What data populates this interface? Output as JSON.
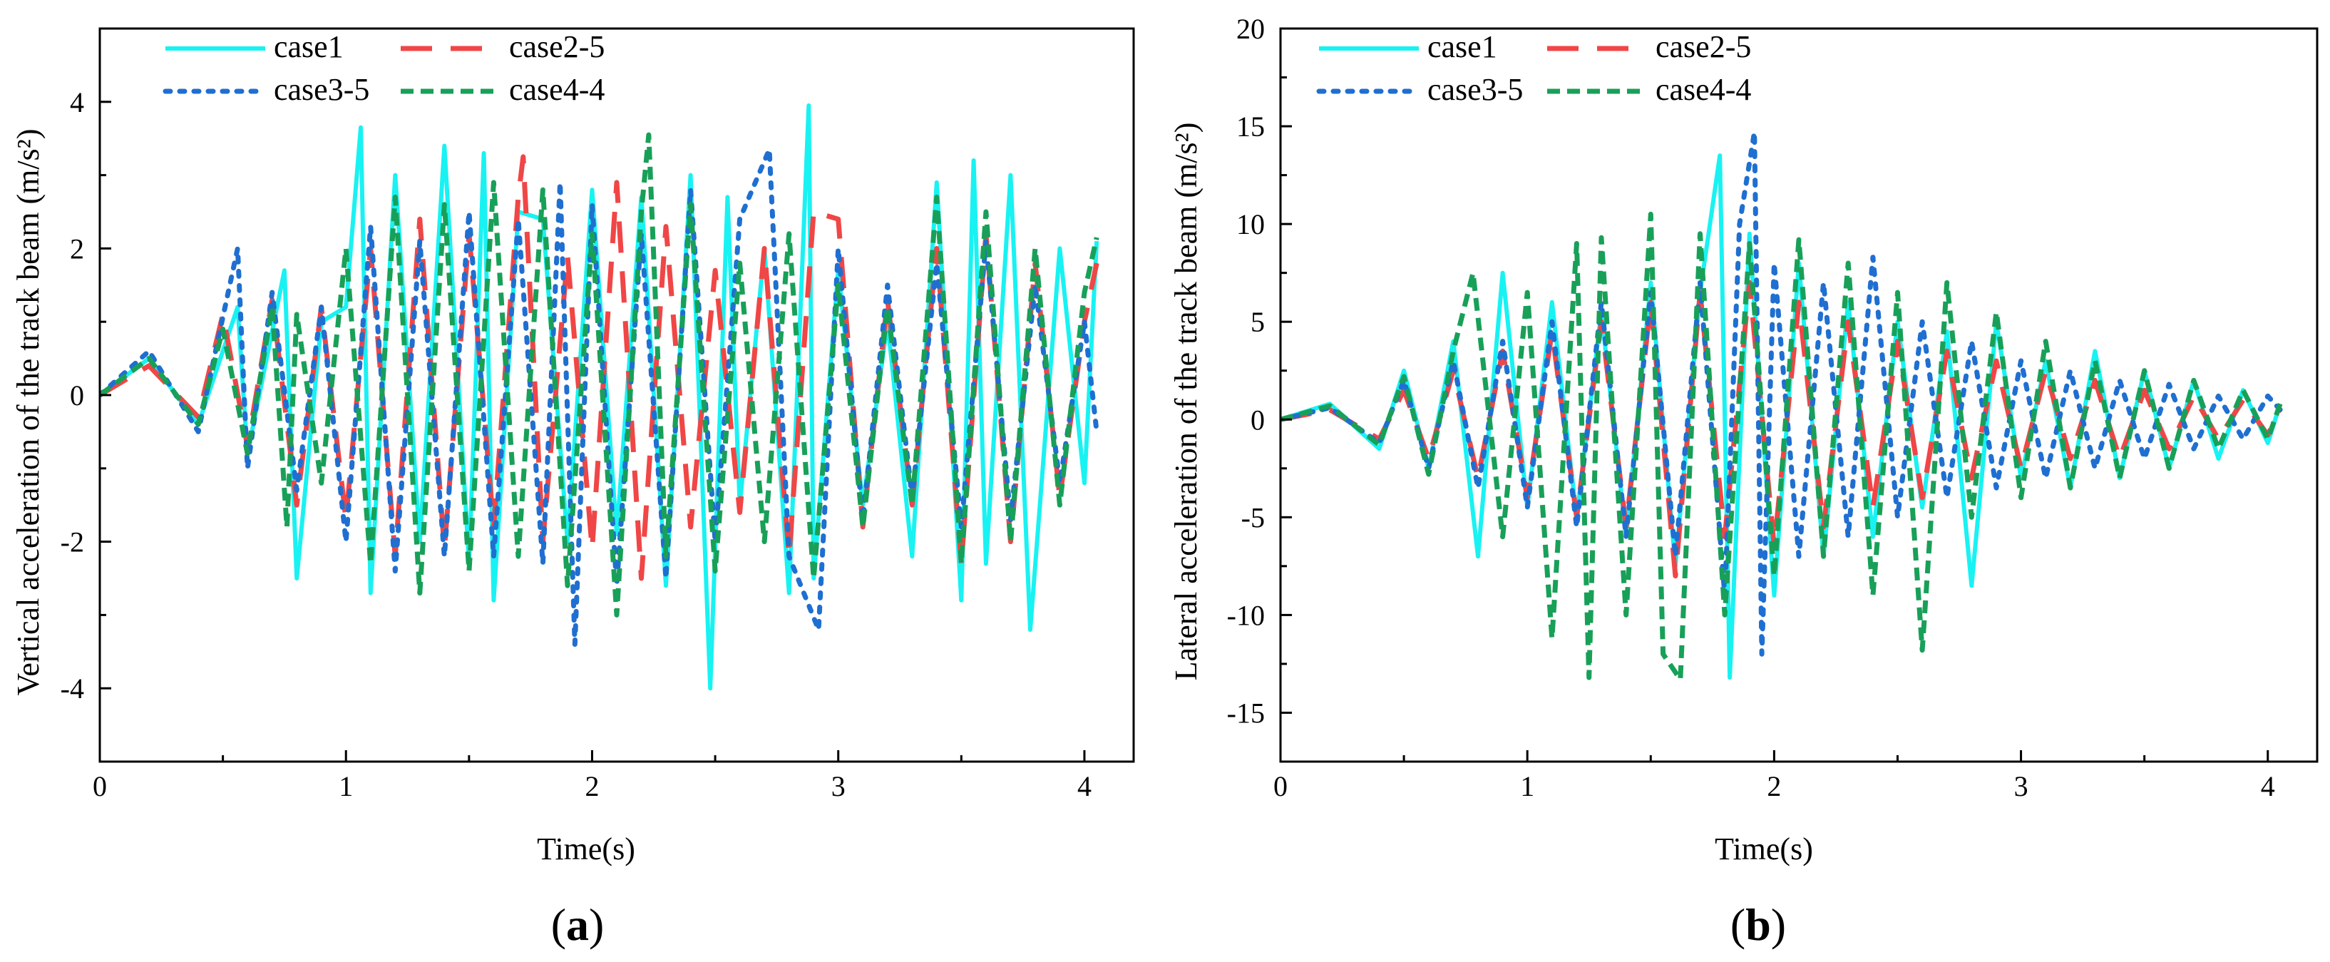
{
  "figure": {
    "panels": [
      {
        "label_open": "(",
        "label_letter": "a",
        "label_close": ")"
      },
      {
        "label_open": "(",
        "label_letter": "b",
        "label_close": ")"
      }
    ]
  },
  "chart_data": [
    {
      "type": "line",
      "title": "",
      "xlabel": "Time(s)",
      "ylabel": "Vertical acceleration of the track beam (m/s²)",
      "xlim": [
        0,
        4.2
      ],
      "ylim": [
        -5,
        5
      ],
      "xticks": [
        0,
        1,
        2,
        3,
        4
      ],
      "yticks": [
        -4,
        -2,
        0,
        2,
        4
      ],
      "legend_location": "top-left",
      "series": [
        {
          "name": "case1",
          "color": "#19F2F2",
          "dash": "solid",
          "x": [
            0,
            0.2,
            0.4,
            0.56,
            0.6,
            0.75,
            0.8,
            0.9,
            1.0,
            1.06,
            1.1,
            1.2,
            1.3,
            1.4,
            1.5,
            1.56,
            1.6,
            1.7,
            1.8,
            1.9,
            2.0,
            2.1,
            2.2,
            2.3,
            2.4,
            2.48,
            2.55,
            2.6,
            2.7,
            2.8,
            2.88,
            2.9,
            3.0,
            3.1,
            3.2,
            3.3,
            3.4,
            3.5,
            3.55,
            3.6,
            3.7,
            3.78,
            3.9,
            4.0,
            4.05
          ],
          "y": [
            0,
            0.5,
            -0.4,
            1.2,
            -0.8,
            1.7,
            -2.5,
            1.0,
            1.2,
            3.65,
            -2.7,
            3.0,
            -2.0,
            3.4,
            -2.3,
            3.3,
            -2.8,
            2.5,
            2.4,
            -2.0,
            2.8,
            -1.9,
            2.7,
            -2.6,
            3.0,
            -4.0,
            2.7,
            -1.5,
            2.0,
            -2.7,
            3.95,
            -2.5,
            1.7,
            -1.5,
            1.0,
            -2.2,
            2.9,
            -2.8,
            3.2,
            -2.3,
            3.0,
            -3.2,
            2.0,
            -1.2,
            2.1
          ]
        },
        {
          "name": "case2-5",
          "color": "#F04646",
          "dash": "long-dash",
          "x": [
            0,
            0.2,
            0.4,
            0.5,
            0.6,
            0.7,
            0.8,
            0.9,
            1.0,
            1.1,
            1.2,
            1.3,
            1.4,
            1.5,
            1.6,
            1.7,
            1.72,
            1.8,
            1.9,
            2.0,
            2.1,
            2.2,
            2.3,
            2.4,
            2.5,
            2.6,
            2.7,
            2.8,
            2.9,
            3.0,
            3.1,
            3.2,
            3.3,
            3.4,
            3.5,
            3.6,
            3.7,
            3.8,
            3.9,
            4.0,
            4.05
          ],
          "y": [
            0,
            0.4,
            -0.3,
            1.1,
            -0.7,
            1.3,
            -1.5,
            1.2,
            -1.7,
            2.0,
            -2.2,
            2.4,
            -2.1,
            2.2,
            -1.8,
            2.7,
            3.25,
            -2.0,
            1.9,
            -2.1,
            2.9,
            -2.5,
            2.3,
            -1.8,
            1.7,
            -1.6,
            2.0,
            -2.2,
            2.5,
            2.4,
            -1.8,
            1.3,
            -1.5,
            2.0,
            -2.3,
            2.2,
            -2.0,
            1.8,
            -1.4,
            1.0,
            1.8
          ]
        },
        {
          "name": "case3-5",
          "color": "#1F6FD1",
          "dash": "dot",
          "x": [
            0,
            0.2,
            0.4,
            0.56,
            0.6,
            0.7,
            0.8,
            0.9,
            1.0,
            1.1,
            1.2,
            1.3,
            1.4,
            1.5,
            1.6,
            1.7,
            1.8,
            1.87,
            1.93,
            2.0,
            2.1,
            2.2,
            2.3,
            2.4,
            2.5,
            2.6,
            2.72,
            2.8,
            2.92,
            3.0,
            3.1,
            3.2,
            3.3,
            3.4,
            3.5,
            3.6,
            3.7,
            3.8,
            3.9,
            4.0,
            4.05
          ],
          "y": [
            0,
            0.6,
            -0.5,
            2.0,
            -1.0,
            1.4,
            -1.3,
            1.2,
            -2.0,
            2.3,
            -2.4,
            2.1,
            -2.2,
            2.5,
            -2.2,
            2.4,
            -2.3,
            2.9,
            -3.4,
            2.6,
            -2.6,
            2.2,
            -2.5,
            2.8,
            -2.0,
            2.4,
            3.35,
            -2.2,
            -3.2,
            2.0,
            -1.7,
            1.5,
            -1.4,
            1.8,
            -1.8,
            2.1,
            -1.7,
            1.5,
            -1.2,
            1.0,
            -0.5
          ]
        },
        {
          "name": "case4-4",
          "color": "#18A058",
          "dash": "dash",
          "x": [
            0,
            0.2,
            0.4,
            0.5,
            0.6,
            0.7,
            0.76,
            0.8,
            0.9,
            1.0,
            1.1,
            1.2,
            1.3,
            1.4,
            1.5,
            1.6,
            1.7,
            1.8,
            1.9,
            2.0,
            2.1,
            2.2,
            2.23,
            2.3,
            2.4,
            2.5,
            2.6,
            2.7,
            2.8,
            2.9,
            3.0,
            3.1,
            3.2,
            3.3,
            3.4,
            3.5,
            3.6,
            3.7,
            3.8,
            3.9,
            4.0,
            4.05
          ],
          "y": [
            0,
            0.5,
            -0.4,
            0.9,
            -0.8,
            1.2,
            -1.8,
            1.1,
            -1.2,
            2.0,
            -2.3,
            2.7,
            -2.7,
            2.6,
            -2.4,
            2.9,
            -2.2,
            2.8,
            -2.6,
            2.2,
            -3.0,
            2.5,
            3.55,
            -2.2,
            2.6,
            -2.4,
            1.8,
            -2.0,
            2.2,
            -2.5,
            1.5,
            -1.8,
            1.2,
            -1.5,
            2.7,
            -2.3,
            2.5,
            -2.0,
            2.0,
            -1.5,
            1.4,
            2.15
          ]
        }
      ]
    },
    {
      "type": "line",
      "title": "",
      "xlabel": "Time(s)",
      "ylabel": "Lateral acceleration of the track beam (m/s²)",
      "xlim": [
        0,
        4.2
      ],
      "ylim": [
        -17.5,
        20
      ],
      "xticks": [
        0,
        1,
        2,
        3,
        4
      ],
      "yticks": [
        -15,
        -10,
        -5,
        0,
        5,
        10,
        15,
        20
      ],
      "legend_location": "top-left",
      "series": [
        {
          "name": "case1",
          "color": "#19F2F2",
          "dash": "solid",
          "x": [
            0,
            0.2,
            0.4,
            0.5,
            0.6,
            0.7,
            0.8,
            0.9,
            1.0,
            1.1,
            1.2,
            1.3,
            1.4,
            1.5,
            1.6,
            1.7,
            1.78,
            1.82,
            1.9,
            2.0,
            2.1,
            2.2,
            2.3,
            2.4,
            2.5,
            2.6,
            2.7,
            2.8,
            2.9,
            3.0,
            3.1,
            3.2,
            3.3,
            3.4,
            3.5,
            3.6,
            3.7,
            3.8,
            3.9,
            4.0,
            4.05
          ],
          "y": [
            0,
            0.8,
            -1.5,
            2.5,
            -2.5,
            4.0,
            -7.0,
            7.5,
            -4.5,
            6.0,
            -5.0,
            5.5,
            -6.0,
            7.0,
            -7.5,
            6.5,
            13.5,
            -13.2,
            9.5,
            -9.0,
            8.0,
            -7.0,
            6.0,
            -6.0,
            5.0,
            -4.5,
            4.5,
            -8.5,
            5.0,
            -3.0,
            3.0,
            -3.5,
            3.5,
            -3.0,
            2.5,
            -2.5,
            2.0,
            -2.0,
            1.5,
            -1.2,
            0.8
          ]
        },
        {
          "name": "case2-5",
          "color": "#F04646",
          "dash": "long-dash",
          "x": [
            0,
            0.2,
            0.4,
            0.5,
            0.6,
            0.7,
            0.8,
            0.9,
            1.0,
            1.1,
            1.2,
            1.3,
            1.4,
            1.5,
            1.6,
            1.7,
            1.8,
            1.9,
            2.0,
            2.1,
            2.2,
            2.3,
            2.4,
            2.5,
            2.6,
            2.7,
            2.8,
            2.9,
            3.0,
            3.1,
            3.2,
            3.3,
            3.4,
            3.5,
            3.6,
            3.7,
            3.8,
            3.9,
            4.0,
            4.05
          ],
          "y": [
            0,
            0.5,
            -1.0,
            1.5,
            -2.0,
            2.5,
            -3.0,
            3.5,
            -4.0,
            4.5,
            -5.0,
            5.0,
            -5.5,
            6.0,
            -8.0,
            6.5,
            -6.0,
            7.0,
            -6.5,
            6.0,
            -5.5,
            5.0,
            -4.5,
            4.0,
            -4.0,
            3.5,
            -3.0,
            3.0,
            -2.5,
            2.5,
            -2.0,
            2.0,
            -2.0,
            1.5,
            -1.5,
            1.2,
            -1.0,
            1.0,
            -0.8,
            0.6
          ]
        },
        {
          "name": "case3-5",
          "color": "#1F6FD1",
          "dash": "dot",
          "x": [
            0,
            0.2,
            0.4,
            0.5,
            0.6,
            0.7,
            0.8,
            0.9,
            1.0,
            1.1,
            1.2,
            1.3,
            1.4,
            1.5,
            1.6,
            1.7,
            1.8,
            1.86,
            1.92,
            1.95,
            2.0,
            2.1,
            2.2,
            2.3,
            2.4,
            2.5,
            2.6,
            2.7,
            2.8,
            2.9,
            3.0,
            3.1,
            3.2,
            3.3,
            3.4,
            3.5,
            3.6,
            3.7,
            3.8,
            3.9,
            4.0,
            4.05
          ],
          "y": [
            0,
            0.6,
            -1.2,
            2.0,
            -2.5,
            3.0,
            -3.5,
            4.0,
            -4.5,
            5.0,
            -5.5,
            6.0,
            -6.0,
            6.5,
            -7.0,
            7.0,
            -9.0,
            10.0,
            14.7,
            -12.0,
            8.0,
            -7.0,
            7.0,
            -6.0,
            8.3,
            -5.0,
            5.0,
            -4.0,
            4.0,
            -3.5,
            3.0,
            -3.0,
            2.5,
            -2.5,
            2.0,
            -2.0,
            1.8,
            -1.5,
            1.2,
            -1.0,
            1.2,
            0.5
          ]
        },
        {
          "name": "case4-4",
          "color": "#18A058",
          "dash": "dash",
          "x": [
            0,
            0.2,
            0.4,
            0.5,
            0.6,
            0.7,
            0.78,
            0.9,
            1.0,
            1.1,
            1.2,
            1.25,
            1.3,
            1.4,
            1.5,
            1.55,
            1.62,
            1.7,
            1.8,
            1.9,
            2.0,
            2.1,
            2.2,
            2.3,
            2.4,
            2.5,
            2.6,
            2.7,
            2.8,
            2.9,
            3.0,
            3.1,
            3.2,
            3.3,
            3.4,
            3.5,
            3.6,
            3.7,
            3.8,
            3.9,
            4.0,
            4.05
          ],
          "y": [
            0,
            0.7,
            -1.3,
            2.2,
            -2.8,
            3.5,
            7.5,
            -6.0,
            6.5,
            -11.2,
            9.0,
            -13.2,
            9.3,
            -10.0,
            10.5,
            -12.0,
            -13.3,
            9.5,
            -10.0,
            9.0,
            -8.0,
            9.2,
            -7.0,
            8.0,
            -9.0,
            6.5,
            -11.8,
            7.0,
            -5.0,
            5.5,
            -4.0,
            4.0,
            -3.5,
            3.0,
            -3.0,
            2.5,
            -2.5,
            2.0,
            -1.5,
            1.5,
            -1.0,
            0.8
          ]
        }
      ]
    }
  ]
}
